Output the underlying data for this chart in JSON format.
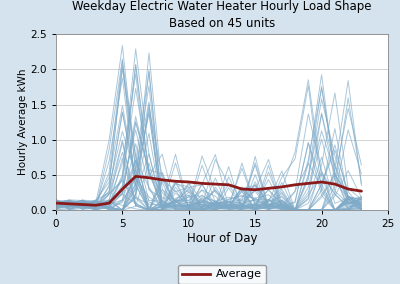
{
  "title": "Weekday Electric Water Heater Hourly Load Shape",
  "subtitle": "Based on 45 units",
  "xlabel": "Hour of Day",
  "ylabel": "Hourly Average kWh",
  "xlim": [
    0,
    25
  ],
  "ylim": [
    0,
    2.5
  ],
  "xticks": [
    0,
    5,
    10,
    15,
    20,
    25
  ],
  "yticks": [
    0.0,
    0.5,
    1.0,
    1.5,
    2.0,
    2.5
  ],
  "outer_bg": "#d5e3ee",
  "plot_bg": "#ffffff",
  "avg_color": "#8b1a1a",
  "line_color": "#7eaac8",
  "avg_linewidth": 2.0,
  "ind_linewidth": 0.7,
  "n_units": 45,
  "seed": 7,
  "avg_data": [
    0.1,
    0.09,
    0.08,
    0.07,
    0.1,
    0.3,
    0.48,
    0.46,
    0.43,
    0.41,
    0.4,
    0.38,
    0.37,
    0.36,
    0.3,
    0.29,
    0.31,
    0.33,
    0.36,
    0.38,
    0.4,
    0.37,
    0.3,
    0.27
  ]
}
